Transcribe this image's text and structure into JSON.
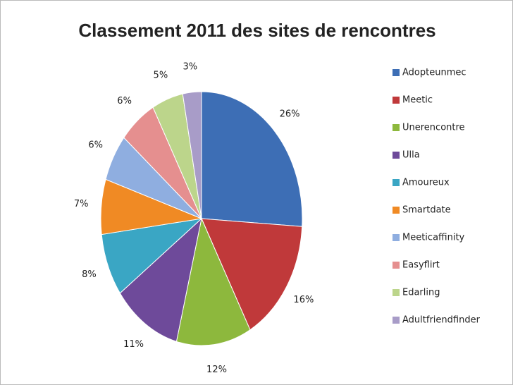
{
  "chart_data": {
    "type": "pie",
    "title": "Classement 2011 des sites de rencontres",
    "categories": [
      "Adopteunmec",
      "Meetic",
      "Unerencontre",
      "Ulla",
      "Amoureux",
      "Smartdate",
      "Meeticaffinity",
      "Easyflirt",
      "Edarling",
      "Adultfriendfinder"
    ],
    "values": [
      26,
      16,
      12,
      11,
      8,
      7,
      6,
      6,
      5,
      3
    ],
    "value_labels": [
      "26%",
      "16%",
      "12%",
      "11%",
      "8%",
      "7%",
      "6%",
      "6%",
      "5%",
      "3%"
    ],
    "colors": [
      "#3d6eb5",
      "#c0393a",
      "#8db83d",
      "#6e4a9a",
      "#3aa6c4",
      "#f08a24",
      "#8faee0",
      "#e58f8f",
      "#bcd58b",
      "#a89cc8"
    ],
    "legend": "right"
  }
}
